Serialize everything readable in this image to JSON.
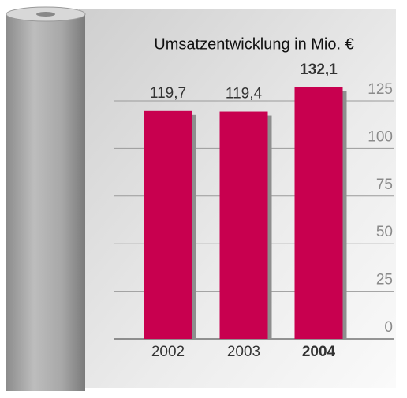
{
  "chart_data": {
    "type": "bar",
    "title": "Umsatzentwicklung in Mio. €",
    "categories": [
      "2002",
      "2003",
      "2004"
    ],
    "values": [
      119.7,
      119.4,
      132.1
    ],
    "value_labels": [
      "119,7",
      "119,4",
      "132,1"
    ],
    "color": "#c8004f",
    "ylim": [
      0,
      125
    ],
    "yticks": [
      0,
      25,
      50,
      75,
      100,
      125
    ],
    "grid": true
  }
}
